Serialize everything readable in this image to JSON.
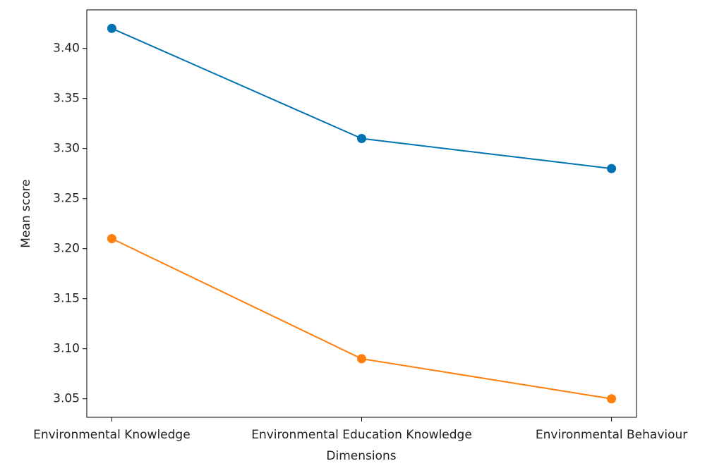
{
  "chart_data": {
    "type": "line",
    "x_label": "Dimensions",
    "y_label": "Mean score",
    "categories": [
      "Environmental Knowledge",
      "Environmental Education Knowledge",
      "Environmental Behaviour"
    ],
    "series": [
      {
        "color": "#0173b2",
        "values": [
          3.42,
          3.31,
          3.28
        ]
      },
      {
        "color": "#ff7f0e",
        "values": [
          3.21,
          3.09,
          3.05
        ]
      }
    ],
    "ylim": [
      3.0315,
      3.4385
    ],
    "yticks": [
      3.05,
      {
        "value": 3.1,
        "label": "3.10"
      },
      3.15,
      {
        "value": 3.2,
        "label": "3.20"
      },
      3.25,
      {
        "value": 3.3,
        "label": "3.30"
      },
      3.35,
      {
        "value": 3.4,
        "label": "3.40"
      }
    ],
    "grid": false
  }
}
